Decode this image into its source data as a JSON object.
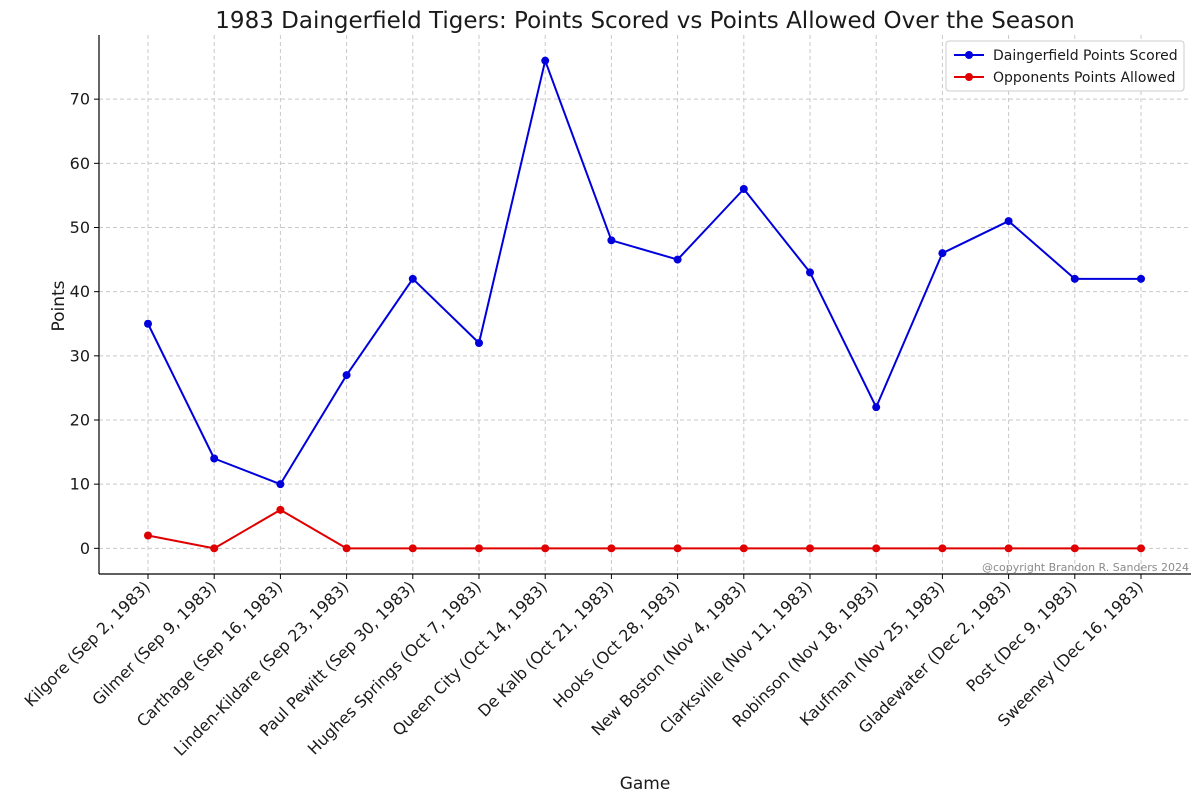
{
  "chart_data": {
    "type": "line",
    "title": "1983 Daingerfield Tigers: Points Scored vs Points Allowed Over the Season",
    "xlabel": "Game",
    "ylabel": "Points",
    "ylim": [
      -4,
      80
    ],
    "yticks": [
      0,
      10,
      20,
      30,
      40,
      50,
      60,
      70
    ],
    "grid": true,
    "legend_position": "top-right",
    "categories": [
      "Kilgore (Sep 2, 1983)",
      "Gilmer (Sep 9, 1983)",
      "Carthage (Sep 16, 1983)",
      "Linden-Kildare (Sep 23, 1983)",
      "Paul Pewitt (Sep 30, 1983)",
      "Hughes Springs (Oct 7, 1983)",
      "Queen City (Oct 14, 1983)",
      "De Kalb (Oct 21, 1983)",
      "Hooks (Oct 28, 1983)",
      "New Boston (Nov 4, 1983)",
      "Clarksville (Nov 11, 1983)",
      "Robinson (Nov 18, 1983)",
      "Kaufman (Nov 25, 1983)",
      "Gladewater (Dec 2, 1983)",
      "Post (Dec 9, 1983)",
      "Sweeney (Dec 16, 1983)"
    ],
    "series": [
      {
        "name": "Daingerfield Points Scored",
        "color": "#0000dd",
        "values": [
          35,
          14,
          10,
          27,
          42,
          32,
          76,
          48,
          45,
          56,
          43,
          22,
          46,
          51,
          42,
          42
        ]
      },
      {
        "name": "Opponents Points Allowed",
        "color": "#e00000",
        "values": [
          2,
          0,
          6,
          0,
          0,
          0,
          0,
          0,
          0,
          0,
          0,
          0,
          0,
          0,
          0,
          0
        ]
      }
    ],
    "annotation": "@copyright Brandon R. Sanders 2024"
  }
}
